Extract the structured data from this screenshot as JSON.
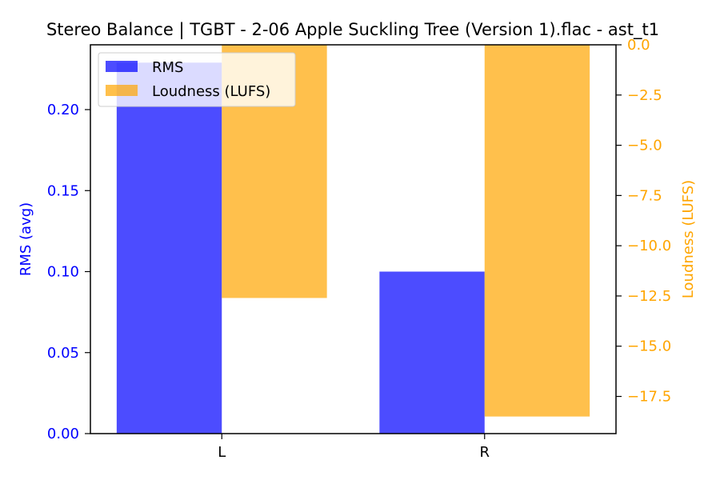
{
  "chart_data": {
    "type": "bar",
    "title": "Stereo Balance | TGBT - 2-06 Apple Suckling Tree (Version 1).flac - ast_t1",
    "categories": [
      "L",
      "R"
    ],
    "series": [
      {
        "name": "RMS",
        "axis": "left",
        "color": "#0000ff",
        "opacity": 0.7,
        "values": [
          0.229,
          0.1
        ]
      },
      {
        "name": "Loudness (LUFS)",
        "axis": "right",
        "color": "#ffa500",
        "opacity": 0.7,
        "values": [
          -12.6,
          -18.5
        ]
      }
    ],
    "y_left": {
      "label": "RMS (avg)",
      "color": "#0000ff",
      "ylim": [
        0,
        0.24
      ],
      "ticks": [
        0.0,
        0.05,
        0.1,
        0.15,
        0.2
      ],
      "tick_labels": [
        "0.00",
        "0.05",
        "0.10",
        "0.15",
        "0.20"
      ]
    },
    "y_right": {
      "label": "Loudness (LUFS)",
      "color": "#ffa500",
      "ylim": [
        -19.35,
        0
      ],
      "ticks": [
        0.0,
        -2.5,
        -5.0,
        -7.5,
        -10.0,
        -12.5,
        -15.0,
        -17.5
      ],
      "tick_labels": [
        "0.0",
        "−2.5",
        "−5.0",
        "−7.5",
        "−10.0",
        "−12.5",
        "−15.0",
        "−17.5"
      ]
    },
    "legend": {
      "placement": "top-left"
    },
    "grid": false
  }
}
